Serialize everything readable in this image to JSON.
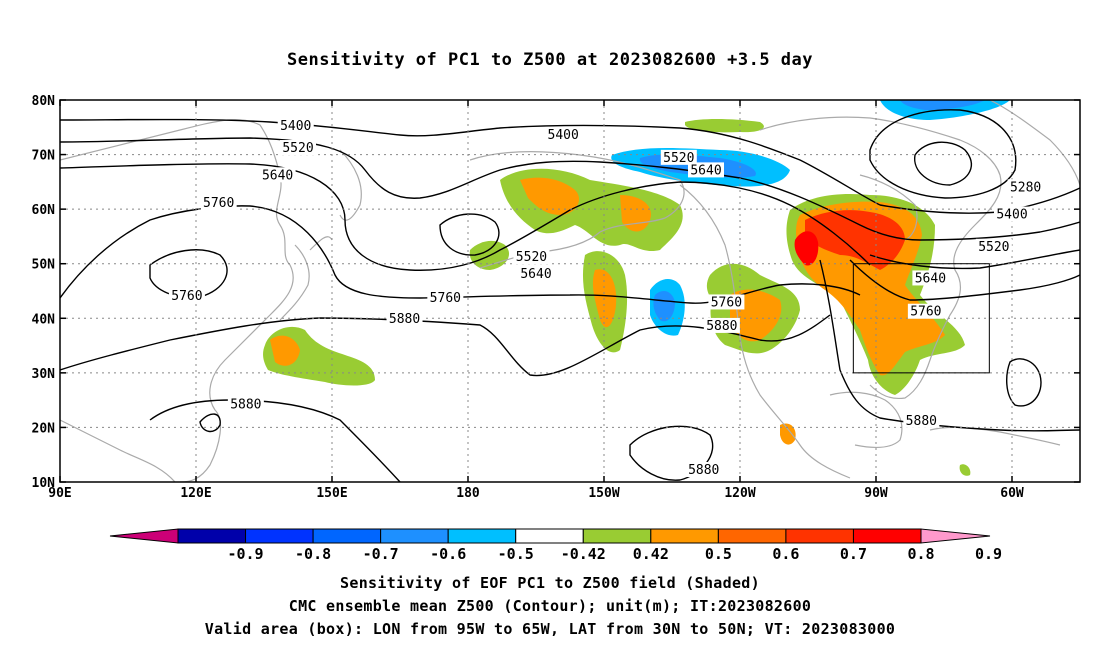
{
  "title": "Sensitivity of PC1 to Z500 at 2023082600 +3.5 day",
  "map": {
    "lat_labels": [
      "80N",
      "70N",
      "60N",
      "50N",
      "40N",
      "30N",
      "20N",
      "10N"
    ],
    "lat_values": [
      80,
      70,
      60,
      50,
      40,
      30,
      20,
      10
    ],
    "lon_labels": [
      "90E",
      "120E",
      "150E",
      "180",
      "150W",
      "120W",
      "90W",
      "60W"
    ],
    "lon_values": [
      90,
      120,
      150,
      180,
      210,
      240,
      270,
      300
    ],
    "extent": {
      "lon_min": 90,
      "lon_max": 315,
      "lat_min": 10,
      "lat_max": 80
    },
    "contour_labels": [
      {
        "text": "5400",
        "lon": 142,
        "lat": 75.2
      },
      {
        "text": "5520",
        "lon": 142.5,
        "lat": 71.2
      },
      {
        "text": "5640",
        "lon": 138,
        "lat": 66.2
      },
      {
        "text": "5760",
        "lon": 125,
        "lat": 61.1
      },
      {
        "text": "5760",
        "lon": 118,
        "lat": 44.1
      },
      {
        "text": "5880",
        "lon": 131,
        "lat": 24.2
      },
      {
        "text": "5400",
        "lon": 201,
        "lat": 73.6
      },
      {
        "text": "5520",
        "lon": 194,
        "lat": 51.2
      },
      {
        "text": "5640",
        "lon": 195,
        "lat": 48.1
      },
      {
        "text": "5760",
        "lon": 175,
        "lat": 43.7
      },
      {
        "text": "5880",
        "lon": 166,
        "lat": 39.9
      },
      {
        "text": "5520",
        "lon": 226.5,
        "lat": 69.4
      },
      {
        "text": "5640",
        "lon": 232.5,
        "lat": 67.1
      },
      {
        "text": "5760",
        "lon": 237,
        "lat": 42.9
      },
      {
        "text": "5880",
        "lon": 236,
        "lat": 38.6
      },
      {
        "text": "5880",
        "lon": 232,
        "lat": 12.2
      },
      {
        "text": "5280",
        "lon": 303,
        "lat": 64.0
      },
      {
        "text": "5400",
        "lon": 300,
        "lat": 59.0
      },
      {
        "text": "5520",
        "lon": 296,
        "lat": 53.1
      },
      {
        "text": "5640",
        "lon": 282,
        "lat": 47.3
      },
      {
        "text": "5760",
        "lon": 281,
        "lat": 41.2
      },
      {
        "text": "5880",
        "lon": 280,
        "lat": 21.2
      }
    ],
    "valid_box": {
      "lon_min": 265,
      "lon_max": 295,
      "lat_min": 30,
      "lat_max": 50
    }
  },
  "colorbar": {
    "labels": [
      "-0.9",
      "-0.8",
      "-0.7",
      "-0.6",
      "-0.5",
      "-0.42",
      "0.42",
      "0.5",
      "0.6",
      "0.7",
      "0.8",
      "0.9"
    ],
    "colors": [
      "#0000aa",
      "#0033ff",
      "#0066ff",
      "#1e90ff",
      "#00bfff",
      "#ffffff",
      "#99cc33",
      "#ff9900",
      "#ff6600",
      "#ff3300",
      "#ff0000"
    ],
    "low_end_color": "#cc0077",
    "high_end_color": "#ff99cc"
  },
  "captions": {
    "line1": "Sensitivity of EOF PC1 to Z500 field (Shaded)",
    "line2": "CMC ensemble mean Z500 (Contour); unit(m); IT:2023082600",
    "line3": "Valid area (box): LON from 95W to 65W, LAT from 30N to 50N; VT: 2023083000"
  }
}
